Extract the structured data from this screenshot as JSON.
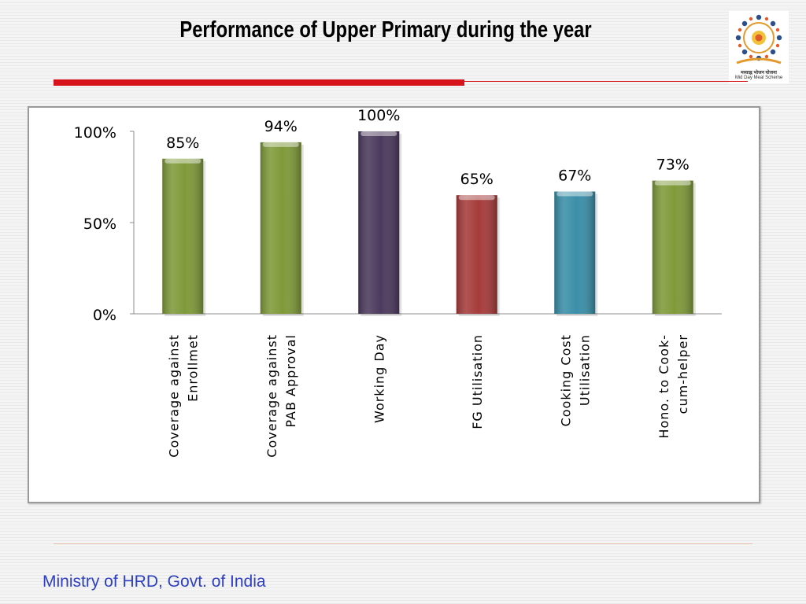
{
  "slide": {
    "title": "Performance of Upper Primary during the year",
    "footer": "Ministry of HRD, Govt. of India",
    "logo_caption_line1": "मध्याह्न भोजन योजना",
    "logo_caption_line2": "Mid Day Meal Scheme",
    "accent_red": "#d7141b",
    "footer_blue": "#2e3fbf"
  },
  "chart_data": {
    "type": "bar",
    "title": "",
    "xlabel": "",
    "ylabel": "",
    "ylim": [
      0,
      100
    ],
    "yticks": [
      0,
      50,
      100
    ],
    "ytick_labels": [
      "0%",
      "50%",
      "100%"
    ],
    "grid": false,
    "legend": "none",
    "categories": [
      [
        "Coverage against",
        "Enrollmet"
      ],
      [
        "Coverage against",
        "PAB Approval"
      ],
      [
        "Working Day"
      ],
      [
        "FG Utilisation"
      ],
      [
        "Cooking Cost",
        "Utilisation"
      ],
      [
        "Hono. to Cook-",
        "cum-helper"
      ]
    ],
    "values": [
      85,
      94,
      100,
      65,
      67,
      73
    ],
    "data_labels": [
      "85%",
      "94%",
      "100%",
      "65%",
      "67%",
      "73%"
    ],
    "colors": [
      "#7f9a3a",
      "#7f9a3a",
      "#4c3a5e",
      "#a63c3b",
      "#3a8fa8",
      "#7f9a3a"
    ]
  }
}
